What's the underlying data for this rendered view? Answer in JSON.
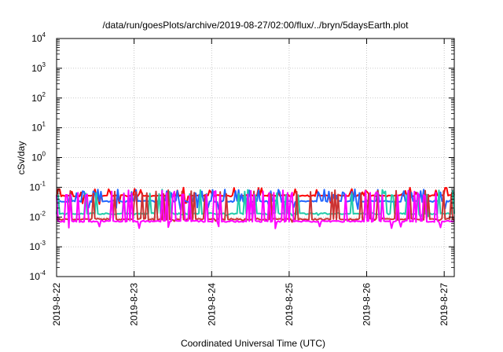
{
  "chart_data": {
    "type": "line",
    "title": "/data/run/goesPlots/archive/2019-08-27/02:00/flux/../bryn/5daysEarth.plot",
    "xlabel": "Coordinated Universal Time (UTC)",
    "ylabel": "cSv/day",
    "yscale": "log",
    "ylim": [
      0.0001,
      10000
    ],
    "y_ticks": [
      {
        "base": "10",
        "exp": "-4",
        "value": 0.0001
      },
      {
        "base": "10",
        "exp": "-3",
        "value": 0.001
      },
      {
        "base": "10",
        "exp": "-2",
        "value": 0.01
      },
      {
        "base": "10",
        "exp": "-1",
        "value": 0.1
      },
      {
        "base": "10",
        "exp": "0",
        "value": 1
      },
      {
        "base": "10",
        "exp": "1",
        "value": 10
      },
      {
        "base": "10",
        "exp": "2",
        "value": 100
      },
      {
        "base": "10",
        "exp": "3",
        "value": 1000
      },
      {
        "base": "10",
        "exp": "4",
        "value": 10000
      }
    ],
    "x_ticks": [
      "2019-8-22",
      "2019-8-23",
      "2019-8-24",
      "2019-8-25",
      "2019-8-26",
      "2019-8-27"
    ],
    "xlim_days": [
      0,
      5.13
    ],
    "grid": true,
    "legend": "none",
    "series": [
      {
        "color": "#ff0000",
        "baseline": 0.052,
        "spike": 0.085,
        "drop": 0.03,
        "seed": 11
      },
      {
        "color": "#2266ff",
        "baseline": 0.034,
        "spike": 0.075,
        "drop": 0.02,
        "seed": 23
      },
      {
        "color": "#22ccaa",
        "baseline": 0.013,
        "spike": 0.075,
        "drop": 0.011,
        "seed": 37
      },
      {
        "color": "#cc3333",
        "baseline": 0.0085,
        "spike": 0.07,
        "drop": 0.0075,
        "seed": 41
      },
      {
        "color": "#ff00ff",
        "baseline": 0.0072,
        "spike": 0.07,
        "drop": 0.0045,
        "seed": 53
      }
    ]
  }
}
